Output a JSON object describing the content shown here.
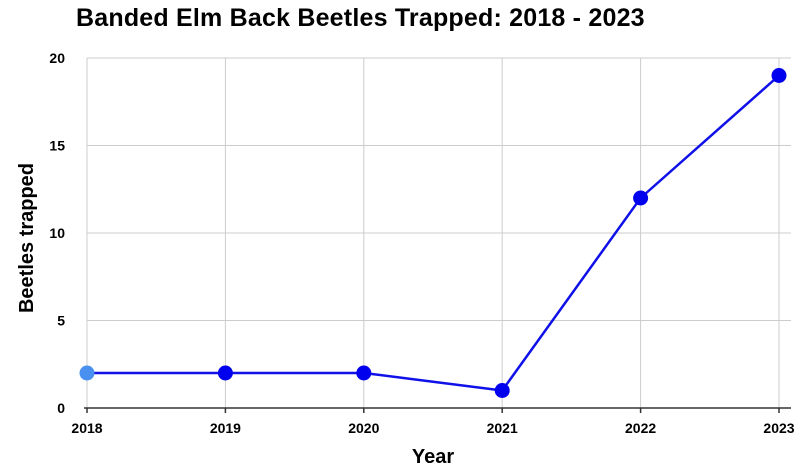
{
  "chart_data": {
    "type": "line",
    "title": "Banded Elm Back Beetles Trapped: 2018 - 2023",
    "xlabel": "Year",
    "ylabel": "Beetles trapped",
    "categories": [
      "2018",
      "2019",
      "2020",
      "2021",
      "2022",
      "2023"
    ],
    "series": [
      {
        "values": [
          2,
          2,
          2,
          1,
          12,
          19
        ]
      }
    ],
    "ylim": [
      0,
      20
    ],
    "yticks": [
      0,
      5,
      10,
      15,
      20
    ],
    "grid": true,
    "colors": {
      "line": "#1010e8",
      "point": "#0000ee",
      "first_point": "#4a90f0",
      "grid": "#cccccc",
      "axis": "#333333"
    }
  }
}
